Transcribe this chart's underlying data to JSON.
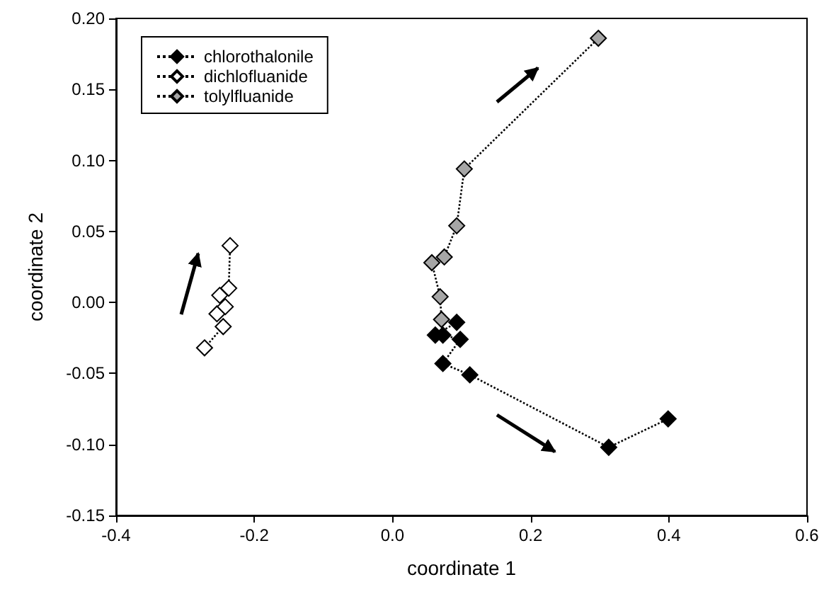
{
  "chart_data": {
    "type": "line",
    "xlabel": "coordinate 1",
    "ylabel": "coordinate 2",
    "xlim": [
      -0.4,
      0.6
    ],
    "xticks": [
      {
        "value": -0.4,
        "label": "-0.4"
      },
      {
        "value": -0.2,
        "label": "-0.2"
      },
      {
        "value": 0,
        "label": "0.0"
      },
      {
        "value": 0.2,
        "label": "0.2"
      },
      {
        "value": 0.4,
        "label": "0.4"
      },
      {
        "value": 0.6,
        "label": "0.6"
      }
    ],
    "ylim": [
      -0.15,
      0.2
    ],
    "yticks": [
      {
        "value": -0.15,
        "label": "-0.15"
      },
      {
        "value": -0.1,
        "label": "-0.10"
      },
      {
        "value": -0.05,
        "label": "-0.05"
      },
      {
        "value": 0,
        "label": "0.00"
      },
      {
        "value": 0.05,
        "label": "0.05"
      },
      {
        "value": 0.1,
        "label": "0.10"
      },
      {
        "value": 0.15,
        "label": "0.15"
      },
      {
        "value": 0.2,
        "label": "0.20"
      }
    ],
    "grid": false,
    "legend": "top left",
    "marker": "diamond",
    "line_style": "dotted",
    "series": [
      {
        "name": "chlorothalonile",
        "color": "#000000",
        "x": [
          0.093,
          0.062,
          0.073,
          0.098,
          0.073,
          0.112,
          0.313,
          0.399
        ],
        "values": [
          -0.014,
          -0.023,
          -0.023,
          -0.026,
          -0.043,
          -0.051,
          -0.102,
          -0.082
        ]
      },
      {
        "name": "dichlofluanide",
        "color": "#ffffff",
        "x": [
          -0.272,
          -0.245,
          -0.254,
          -0.242,
          -0.25,
          -0.237,
          -0.235
        ],
        "values": [
          -0.032,
          -0.017,
          -0.008,
          -0.003,
          0.005,
          0.01,
          0.04
        ]
      },
      {
        "name": "tolylfluanide",
        "color": "#a6a6a6",
        "x": [
          0.071,
          0.069,
          0.057,
          0.075,
          0.093,
          0.104,
          0.298
        ],
        "values": [
          -0.012,
          0.004,
          0.028,
          0.032,
          0.054,
          0.094,
          0.186
        ]
      }
    ]
  }
}
